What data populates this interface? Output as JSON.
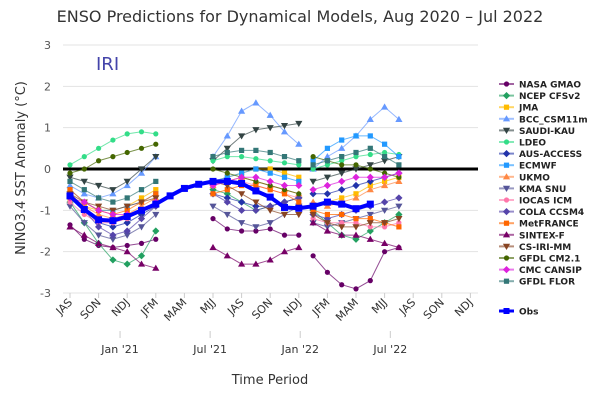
{
  "chart_data": {
    "type": "line",
    "title": "ENSO Predictions for Dynamical Models, Aug 2020 – Jul 2022",
    "watermark": "IRI",
    "xlabel": "Time Period",
    "ylabel": "NINO3.4 SST Anomaly (°C)",
    "ylim": [
      -3,
      3
    ],
    "yticks": [
      3,
      2,
      1,
      0,
      -1,
      -2,
      -3
    ],
    "grid": true,
    "legend_position": "right",
    "reference_line": 0,
    "x_month_count": 29,
    "season_ticks": [
      "JAS",
      "SON",
      "NDJ",
      "JFM",
      "MAM",
      "MJJ",
      "JAS",
      "SON",
      "NDJ",
      "JFM",
      "MAM",
      "MJJ",
      "JAS",
      "SON",
      "NDJ"
    ],
    "year_ticks": [
      {
        "label": "Jan '21",
        "month_index": 3.5
      },
      {
        "label": "Jul '21",
        "month_index": 9.8
      },
      {
        "label": "Jan '22",
        "month_index": 16.1
      },
      {
        "label": "Jul '22",
        "month_index": 22.4
      }
    ],
    "obs": {
      "name": "Obs",
      "color": "#0000ff",
      "start": 0,
      "values": [
        -0.65,
        -0.98,
        -1.23,
        -1.25,
        -1.15,
        -1.0,
        -0.85,
        -0.65,
        -0.47,
        -0.37,
        -0.3,
        -0.3,
        -0.35,
        -0.53,
        -0.68,
        -0.93,
        -0.95,
        -0.9,
        -0.8,
        -0.85,
        -0.96,
        -0.85
      ]
    },
    "run_starts": [
      0,
      10,
      17
    ],
    "series": [
      {
        "name": "NASA GMAO",
        "color": "#660066",
        "marker": "circle",
        "runs": [
          [
            -1.35,
            -1.7,
            -1.85,
            -1.9,
            -1.85,
            -1.8,
            -1.7
          ],
          [
            -1.2,
            -1.45,
            -1.5,
            -1.5,
            -1.45,
            -1.6,
            -1.6
          ],
          [
            -2.1,
            -2.5,
            -2.8,
            -2.9,
            -2.7,
            -2.0,
            -1.9
          ]
        ]
      },
      {
        "name": "NCEP CFSv2",
        "color": "#22a060",
        "marker": "diamond",
        "runs": [
          [
            -0.8,
            -1.3,
            -1.8,
            -2.2,
            -2.3,
            -2.1,
            -1.5
          ],
          [
            -0.5,
            -0.6,
            -0.8,
            -1.0,
            -0.9,
            -0.8,
            -0.7
          ],
          [
            -1.0,
            -1.3,
            -1.6,
            -1.7,
            -1.5,
            -1.3,
            -1.1
          ]
        ]
      },
      {
        "name": "JMA",
        "color": "#ffbb00",
        "marker": "square",
        "runs": [
          [
            -0.7,
            -0.9,
            -1.0,
            -1.0,
            -0.9,
            -0.7,
            -0.5
          ],
          [
            -0.3,
            -0.2,
            -0.1,
            0.0,
            0.0,
            -0.1,
            -0.2
          ],
          [
            -0.9,
            -0.8,
            -0.7,
            -0.6,
            -0.4,
            -0.3,
            -0.2
          ]
        ]
      },
      {
        "name": "BCC_CSM11m",
        "color": "#6699ff",
        "marker": "triangle",
        "runs": [
          [
            -0.4,
            -0.6,
            -0.7,
            -0.6,
            -0.4,
            -0.1,
            0.3
          ],
          [
            0.3,
            0.8,
            1.4,
            1.6,
            1.3,
            0.9,
            0.6
          ],
          [
            0.0,
            0.3,
            0.5,
            0.8,
            1.2,
            1.5,
            1.2
          ]
        ]
      },
      {
        "name": "SAUDI-KAU",
        "color": "#334444",
        "marker": "tri-down",
        "runs": [
          [
            -0.2,
            -0.3,
            -0.4,
            -0.5,
            -0.3,
            0.0,
            0.3
          ],
          [
            0.2,
            0.5,
            0.8,
            0.95,
            1.0,
            1.05,
            1.1
          ],
          [
            -0.3,
            -0.2,
            -0.1,
            0.0,
            0.1,
            0.2,
            0.3
          ]
        ]
      },
      {
        "name": "LDEO",
        "color": "#33dd88",
        "marker": "circle",
        "runs": [
          [
            0.1,
            0.3,
            0.5,
            0.7,
            0.85,
            0.9,
            0.85
          ],
          [
            0.2,
            0.3,
            0.3,
            0.25,
            0.2,
            0.15,
            0.1
          ],
          [
            0.0,
            0.1,
            0.2,
            0.3,
            0.35,
            0.4,
            0.35
          ]
        ]
      },
      {
        "name": "AUS-ACCESS",
        "color": "#2233aa",
        "marker": "diamond",
        "runs": [
          [
            -0.7,
            -1.0,
            -1.3,
            -1.4,
            -1.3,
            -1.1,
            -0.9
          ],
          [
            -0.6,
            -0.7,
            -0.8,
            -0.9,
            -0.9,
            -0.8,
            -0.7
          ],
          [
            -0.6,
            -0.6,
            -0.5,
            -0.4,
            -0.3,
            -0.2,
            -0.1
          ]
        ]
      },
      {
        "name": "ECMWF",
        "color": "#2299ff",
        "marker": "square",
        "runs": [
          [
            -0.5,
            -0.8,
            -1.0,
            -1.0,
            -0.9,
            -0.8,
            -0.6
          ],
          [
            -0.3,
            -0.2,
            -0.1,
            0.0,
            -0.1,
            -0.2,
            -0.3
          ],
          [
            0.2,
            0.5,
            0.7,
            0.8,
            0.8,
            0.6,
            0.3
          ]
        ]
      },
      {
        "name": "UKMO",
        "color": "#ff8844",
        "marker": "triangle",
        "runs": [
          [
            -0.6,
            -0.9,
            -1.1,
            -1.2,
            -1.1,
            -0.9,
            -0.7
          ],
          [
            -0.4,
            -0.3,
            -0.2,
            -0.3,
            -0.4,
            -0.5,
            -0.6
          ],
          [
            -0.8,
            -0.9,
            -0.8,
            -0.7,
            -0.5,
            -0.4,
            -0.3
          ]
        ]
      },
      {
        "name": "KMA SNU",
        "color": "#555599",
        "marker": "tri-down",
        "runs": [
          [
            -0.9,
            -1.3,
            -1.6,
            -1.7,
            -1.6,
            -1.4,
            -1.1
          ],
          [
            -0.9,
            -1.1,
            -1.3,
            -1.4,
            -1.3,
            -1.1,
            -0.9
          ],
          [
            -1.3,
            -1.4,
            -1.3,
            -1.2,
            -1.1,
            -1.0,
            -0.9
          ]
        ]
      },
      {
        "name": "IOCAS ICM",
        "color": "#ff77aa",
        "marker": "circle",
        "runs": [
          [
            -0.8,
            -1.1,
            -1.3,
            -1.3,
            -1.2,
            -1.0,
            -0.8
          ],
          [
            -0.4,
            -0.3,
            -0.3,
            -0.4,
            -0.5,
            -0.6,
            -0.7
          ],
          [
            -1.2,
            -1.3,
            -1.3,
            -1.3,
            -1.4,
            -1.4,
            -1.3
          ]
        ]
      },
      {
        "name": "COLA CCSM4",
        "color": "#5544aa",
        "marker": "diamond",
        "runs": [
          [
            -0.6,
            -1.0,
            -1.4,
            -1.6,
            -1.5,
            -1.2,
            -0.9
          ],
          [
            -0.6,
            -0.8,
            -1.0,
            -1.0,
            -0.9,
            -0.8,
            -0.7
          ],
          [
            -1.1,
            -1.2,
            -1.1,
            -1.0,
            -0.9,
            -0.8,
            -0.7
          ]
        ]
      },
      {
        "name": "MetFRANCE",
        "color": "#ff6600",
        "marker": "square",
        "runs": [
          [
            -0.5,
            -0.8,
            -1.0,
            -1.1,
            -1.0,
            -0.8,
            -0.6
          ],
          [
            -0.6,
            -0.5,
            -0.4,
            -0.4,
            -0.5,
            -0.6,
            -0.8
          ],
          [
            -1.0,
            -1.1,
            -1.1,
            -1.2,
            -1.2,
            -1.3,
            -1.4
          ]
        ]
      },
      {
        "name": "SINTEX-F",
        "color": "#770066",
        "marker": "triangle",
        "runs": [
          [
            -1.4,
            -1.6,
            -1.8,
            -1.9,
            -2.0,
            -2.3,
            -2.4
          ],
          [
            -1.9,
            -2.1,
            -2.3,
            -2.3,
            -2.2,
            -2.0,
            -1.9
          ],
          [
            -1.3,
            -1.5,
            -1.6,
            -1.6,
            -1.7,
            -1.8,
            -1.9
          ]
        ]
      },
      {
        "name": "CS-IRI-MM",
        "color": "#884422",
        "marker": "tri-down",
        "runs": [
          [
            -0.6,
            -0.8,
            -0.9,
            -1.0,
            -0.9,
            -0.8,
            -0.7
          ],
          [
            -0.3,
            -0.4,
            -0.6,
            -0.8,
            -1.0,
            -1.1,
            -1.1
          ],
          [
            -1.1,
            -1.3,
            -1.4,
            -1.4,
            -1.3,
            -1.3,
            -1.2
          ]
        ]
      },
      {
        "name": "GFDL CM2.1",
        "color": "#446600",
        "marker": "circle",
        "runs": [
          [
            -0.1,
            0.0,
            0.2,
            0.3,
            0.4,
            0.5,
            0.6
          ],
          [
            0.0,
            -0.1,
            -0.2,
            -0.3,
            -0.4,
            -0.5,
            -0.6
          ],
          [
            0.3,
            0.2,
            0.1,
            0.1,
            0.0,
            -0.1,
            -0.2
          ]
        ]
      },
      {
        "name": "CMC CANSIP",
        "color": "#dd22dd",
        "marker": "diamond",
        "runs": [
          [
            -0.7,
            -0.8,
            -1.0,
            -1.1,
            -1.1,
            -1.0,
            -0.8
          ],
          [
            -0.4,
            -0.3,
            -0.2,
            -0.2,
            -0.3,
            -0.4,
            -0.4
          ],
          [
            -0.5,
            -0.4,
            -0.3,
            -0.2,
            -0.2,
            -0.2,
            -0.1
          ]
        ]
      },
      {
        "name": "GFDL FLOR",
        "color": "#337777",
        "marker": "square",
        "runs": [
          [
            -0.3,
            -0.5,
            -0.7,
            -0.8,
            -0.7,
            -0.5,
            -0.3
          ],
          [
            0.3,
            0.4,
            0.45,
            0.45,
            0.4,
            0.3,
            0.2
          ],
          [
            0.1,
            0.2,
            0.3,
            0.4,
            0.5,
            0.3,
            0.1
          ]
        ]
      }
    ]
  }
}
